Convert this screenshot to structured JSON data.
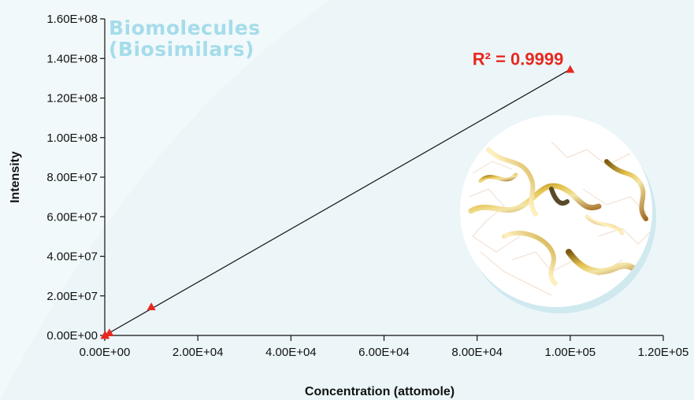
{
  "brand": {
    "line1": "Biomolecules",
    "line2": "(Biosimilars)"
  },
  "colors": {
    "background": "#ecf6f8",
    "brand_text": "#a5dcea",
    "marker": "#e8281e",
    "line": "#111111",
    "annotation": "#e8281e"
  },
  "image": {
    "name": "protein-ribbon-structure"
  },
  "chart_data": {
    "type": "scatter",
    "title": "",
    "xlabel": "Concentration (attomole)",
    "ylabel": "Intensity",
    "xlim": [
      0,
      120000
    ],
    "ylim": [
      0,
      160000000
    ],
    "xticks": [
      0,
      20000,
      40000,
      60000,
      80000,
      100000,
      120000
    ],
    "xtick_labels": [
      "0.00E+00",
      "2.00E+04",
      "4.00E+04",
      "6.00E+04",
      "8.00E+04",
      "1.00E+05",
      "1.20E+05"
    ],
    "yticks": [
      0,
      20000000,
      40000000,
      60000000,
      80000000,
      100000000,
      120000000,
      140000000,
      160000000
    ],
    "ytick_labels": [
      "0.00E+00",
      "2.00E+07",
      "4.00E+07",
      "6.00E+07",
      "8.00E+07",
      "1.00E+08",
      "1.20E+08",
      "1.40E+08",
      "1.60E+08"
    ],
    "series": [
      {
        "marker": "triangle",
        "x": [
          0,
          100,
          1000,
          10000,
          100000
        ],
        "y": [
          0,
          130000,
          1350000,
          14500000,
          134500000
        ]
      }
    ],
    "trendline": {
      "x": [
        0,
        100000
      ],
      "y": [
        0,
        134500000
      ]
    },
    "annotation": {
      "text": "R² = 0.9999",
      "x": 79000,
      "y": 140000000
    },
    "grid": false,
    "legend": "none"
  }
}
